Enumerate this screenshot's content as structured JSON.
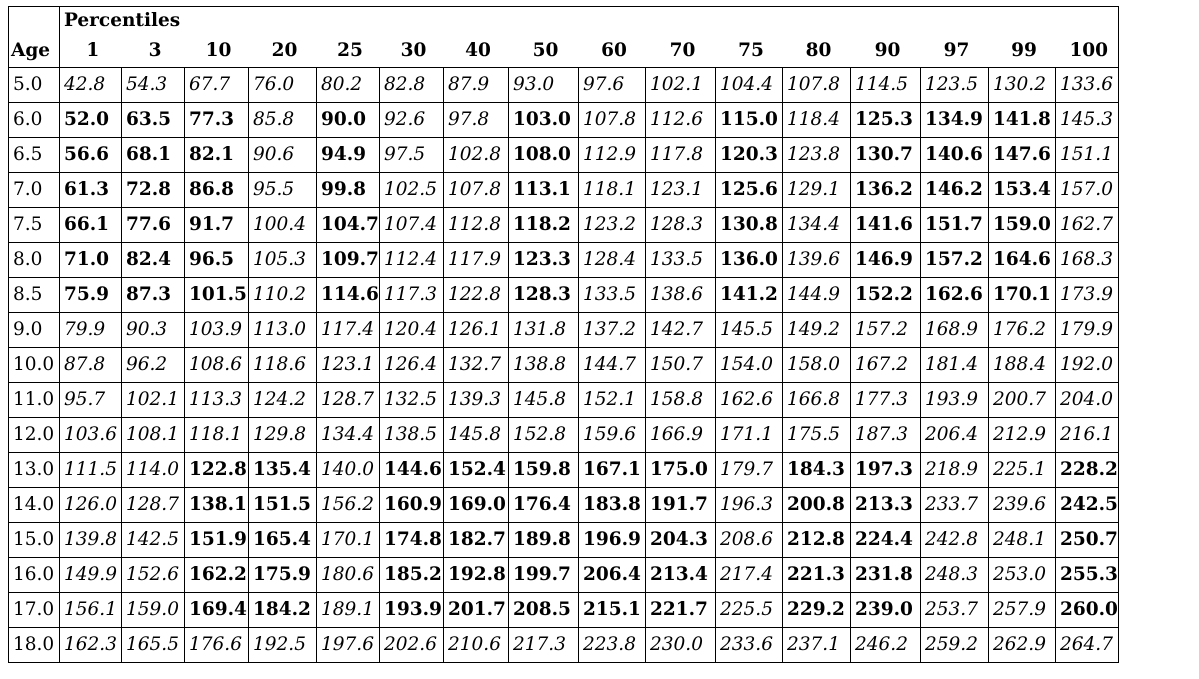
{
  "header": {
    "title": "Percentiles",
    "age_label": "Age"
  },
  "percentiles": [
    "1",
    "3",
    "10",
    "20",
    "25",
    "30",
    "40",
    "50",
    "60",
    "70",
    "75",
    "80",
    "90",
    "97",
    "99",
    "100"
  ],
  "rows": [
    {
      "age": "5.0",
      "values": [
        "42.8",
        "54.3",
        "67.7",
        "76.0",
        "80.2",
        "82.8",
        "87.9",
        "93.0",
        "97.6",
        "102.1",
        "104.4",
        "107.8",
        "114.5",
        "123.5",
        "130.2",
        "133.6"
      ],
      "bold": [
        0,
        0,
        0,
        0,
        0,
        0,
        0,
        0,
        0,
        0,
        0,
        0,
        0,
        0,
        0,
        0
      ]
    },
    {
      "age": "6.0",
      "values": [
        "52.0",
        "63.5",
        "77.3",
        "85.8",
        "90.0",
        "92.6",
        "97.8",
        "103.0",
        "107.8",
        "112.6",
        "115.0",
        "118.4",
        "125.3",
        "134.9",
        "141.8",
        "145.3"
      ],
      "bold": [
        1,
        1,
        1,
        0,
        1,
        0,
        0,
        1,
        0,
        0,
        1,
        0,
        1,
        1,
        1,
        0
      ]
    },
    {
      "age": "6.5",
      "values": [
        "56.6",
        "68.1",
        "82.1",
        "90.6",
        "94.9",
        "97.5",
        "102.8",
        "108.0",
        "112.9",
        "117.8",
        "120.3",
        "123.8",
        "130.7",
        "140.6",
        "147.6",
        "151.1"
      ],
      "bold": [
        1,
        1,
        1,
        0,
        1,
        0,
        0,
        1,
        0,
        0,
        1,
        0,
        1,
        1,
        1,
        0
      ]
    },
    {
      "age": "7.0",
      "values": [
        "61.3",
        "72.8",
        "86.8",
        "95.5",
        "99.8",
        "102.5",
        "107.8",
        "113.1",
        "118.1",
        "123.1",
        "125.6",
        "129.1",
        "136.2",
        "146.2",
        "153.4",
        "157.0"
      ],
      "bold": [
        1,
        1,
        1,
        0,
        1,
        0,
        0,
        1,
        0,
        0,
        1,
        0,
        1,
        1,
        1,
        0
      ]
    },
    {
      "age": "7.5",
      "values": [
        "66.1",
        "77.6",
        "91.7",
        "100.4",
        "104.7",
        "107.4",
        "112.8",
        "118.2",
        "123.2",
        "128.3",
        "130.8",
        "134.4",
        "141.6",
        "151.7",
        "159.0",
        "162.7"
      ],
      "bold": [
        1,
        1,
        1,
        0,
        1,
        0,
        0,
        1,
        0,
        0,
        1,
        0,
        1,
        1,
        1,
        0
      ]
    },
    {
      "age": "8.0",
      "values": [
        "71.0",
        "82.4",
        "96.5",
        "105.3",
        "109.7",
        "112.4",
        "117.9",
        "123.3",
        "128.4",
        "133.5",
        "136.0",
        "139.6",
        "146.9",
        "157.2",
        "164.6",
        "168.3"
      ],
      "bold": [
        1,
        1,
        1,
        0,
        1,
        0,
        0,
        1,
        0,
        0,
        1,
        0,
        1,
        1,
        1,
        0
      ]
    },
    {
      "age": "8.5",
      "values": [
        "75.9",
        "87.3",
        "101.5",
        "110.2",
        "114.6",
        "117.3",
        "122.8",
        "128.3",
        "133.5",
        "138.6",
        "141.2",
        "144.9",
        "152.2",
        "162.6",
        "170.1",
        "173.9"
      ],
      "bold": [
        1,
        1,
        1,
        0,
        1,
        0,
        0,
        1,
        0,
        0,
        1,
        0,
        1,
        1,
        1,
        0
      ]
    },
    {
      "age": "9.0",
      "values": [
        "79.9",
        "90.3",
        "103.9",
        "113.0",
        "117.4",
        "120.4",
        "126.1",
        "131.8",
        "137.2",
        "142.7",
        "145.5",
        "149.2",
        "157.2",
        "168.9",
        "176.2",
        "179.9"
      ],
      "bold": [
        0,
        0,
        0,
        0,
        0,
        0,
        0,
        0,
        0,
        0,
        0,
        0,
        0,
        0,
        0,
        0
      ]
    },
    {
      "age": "10.0",
      "values": [
        "87.8",
        "96.2",
        "108.6",
        "118.6",
        "123.1",
        "126.4",
        "132.7",
        "138.8",
        "144.7",
        "150.7",
        "154.0",
        "158.0",
        "167.2",
        "181.4",
        "188.4",
        "192.0"
      ],
      "bold": [
        0,
        0,
        0,
        0,
        0,
        0,
        0,
        0,
        0,
        0,
        0,
        0,
        0,
        0,
        0,
        0
      ]
    },
    {
      "age": "11.0",
      "values": [
        "95.7",
        "102.1",
        "113.3",
        "124.2",
        "128.7",
        "132.5",
        "139.3",
        "145.8",
        "152.1",
        "158.8",
        "162.6",
        "166.8",
        "177.3",
        "193.9",
        "200.7",
        "204.0"
      ],
      "bold": [
        0,
        0,
        0,
        0,
        0,
        0,
        0,
        0,
        0,
        0,
        0,
        0,
        0,
        0,
        0,
        0
      ]
    },
    {
      "age": "12.0",
      "values": [
        "103.6",
        "108.1",
        "118.1",
        "129.8",
        "134.4",
        "138.5",
        "145.8",
        "152.8",
        "159.6",
        "166.9",
        "171.1",
        "175.5",
        "187.3",
        "206.4",
        "212.9",
        "216.1"
      ],
      "bold": [
        0,
        0,
        0,
        0,
        0,
        0,
        0,
        0,
        0,
        0,
        0,
        0,
        0,
        0,
        0,
        0
      ]
    },
    {
      "age": "13.0",
      "values": [
        "111.5",
        "114.0",
        "122.8",
        "135.4",
        "140.0",
        "144.6",
        "152.4",
        "159.8",
        "167.1",
        "175.0",
        "179.7",
        "184.3",
        "197.3",
        "218.9",
        "225.1",
        "228.2"
      ],
      "bold": [
        0,
        0,
        1,
        1,
        0,
        1,
        1,
        1,
        1,
        1,
        0,
        1,
        1,
        0,
        0,
        1
      ]
    },
    {
      "age": "14.0",
      "values": [
        "126.0",
        "128.7",
        "138.1",
        "151.5",
        "156.2",
        "160.9",
        "169.0",
        "176.4",
        "183.8",
        "191.7",
        "196.3",
        "200.8",
        "213.3",
        "233.7",
        "239.6",
        "242.5"
      ],
      "bold": [
        0,
        0,
        1,
        1,
        0,
        1,
        1,
        1,
        1,
        1,
        0,
        1,
        1,
        0,
        0,
        1
      ]
    },
    {
      "age": "15.0",
      "values": [
        "139.8",
        "142.5",
        "151.9",
        "165.4",
        "170.1",
        "174.8",
        "182.7",
        "189.8",
        "196.9",
        "204.3",
        "208.6",
        "212.8",
        "224.4",
        "242.8",
        "248.1",
        "250.7"
      ],
      "bold": [
        0,
        0,
        1,
        1,
        0,
        1,
        1,
        1,
        1,
        1,
        0,
        1,
        1,
        0,
        0,
        1
      ]
    },
    {
      "age": "16.0",
      "values": [
        "149.9",
        "152.6",
        "162.2",
        "175.9",
        "180.6",
        "185.2",
        "192.8",
        "199.7",
        "206.4",
        "213.4",
        "217.4",
        "221.3",
        "231.8",
        "248.3",
        "253.0",
        "255.3"
      ],
      "bold": [
        0,
        0,
        1,
        1,
        0,
        1,
        1,
        1,
        1,
        1,
        0,
        1,
        1,
        0,
        0,
        1
      ]
    },
    {
      "age": "17.0",
      "values": [
        "156.1",
        "159.0",
        "169.4",
        "184.2",
        "189.1",
        "193.9",
        "201.7",
        "208.5",
        "215.1",
        "221.7",
        "225.5",
        "229.2",
        "239.0",
        "253.7",
        "257.9",
        "260.0"
      ],
      "bold": [
        0,
        0,
        1,
        1,
        0,
        1,
        1,
        1,
        1,
        1,
        0,
        1,
        1,
        0,
        0,
        1
      ]
    },
    {
      "age": "18.0",
      "values": [
        "162.3",
        "165.5",
        "176.6",
        "192.5",
        "197.6",
        "202.6",
        "210.6",
        "217.3",
        "223.8",
        "230.0",
        "233.6",
        "237.1",
        "246.2",
        "259.2",
        "262.9",
        "264.7"
      ],
      "bold": [
        0,
        0,
        0,
        0,
        0,
        0,
        0,
        0,
        0,
        0,
        0,
        0,
        0,
        0,
        0,
        0
      ]
    }
  ]
}
